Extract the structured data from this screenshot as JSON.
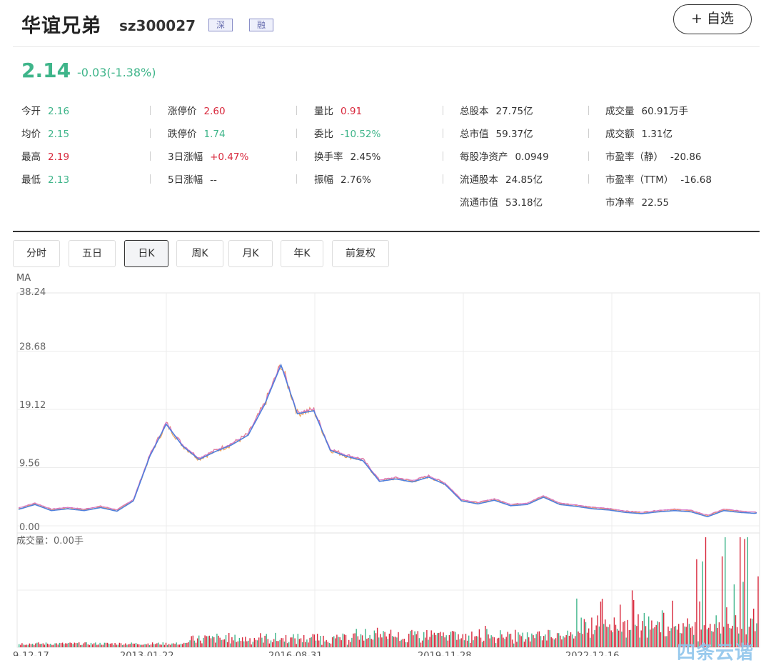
{
  "header": {
    "name": "华谊兄弟",
    "code": "sz300027",
    "tag_market": "深",
    "tag_margin": "融",
    "watch_label": "+ 自选"
  },
  "quote": {
    "price": "2.14",
    "change": "-0.03(-1.38%)"
  },
  "stats": [
    [
      {
        "label": "今开",
        "value": "2.16",
        "color": "green"
      },
      {
        "label": "涨停价",
        "value": "2.60",
        "color": "red"
      },
      {
        "label": "量比",
        "value": "0.91",
        "color": "red"
      },
      {
        "label": "总股本",
        "value": "27.75亿",
        "color": ""
      },
      {
        "label": "成交量",
        "value": "60.91万手",
        "color": ""
      }
    ],
    [
      {
        "label": "均价",
        "value": "2.15",
        "color": "green"
      },
      {
        "label": "跌停价",
        "value": "1.74",
        "color": "green"
      },
      {
        "label": "委比",
        "value": "-10.52%",
        "color": "green"
      },
      {
        "label": "总市值",
        "value": "59.37亿",
        "color": ""
      },
      {
        "label": "成交额",
        "value": "1.31亿",
        "color": ""
      }
    ],
    [
      {
        "label": "最高",
        "value": "2.19",
        "color": "red"
      },
      {
        "label": "3日涨幅",
        "value": "+0.47%",
        "color": "red"
      },
      {
        "label": "换手率",
        "value": "2.45%",
        "color": ""
      },
      {
        "label": "每股净资产",
        "value": "0.0949",
        "color": ""
      },
      {
        "label": "市盈率（静）",
        "value": "-20.86",
        "color": ""
      }
    ],
    [
      {
        "label": "最低",
        "value": "2.13",
        "color": "green"
      },
      {
        "label": "5日涨幅",
        "value": "--",
        "color": ""
      },
      {
        "label": "振幅",
        "value": "2.76%",
        "color": ""
      },
      {
        "label": "流通股本",
        "value": "24.85亿",
        "color": ""
      },
      {
        "label": "市盈率（TTM）",
        "value": "-16.68",
        "color": ""
      }
    ],
    [
      null,
      null,
      null,
      {
        "label": "流通市值",
        "value": "53.18亿",
        "color": ""
      },
      {
        "label": "市净率",
        "value": "22.55",
        "color": ""
      }
    ]
  ],
  "tabs": [
    "分时",
    "五日",
    "日K",
    "周K",
    "月K",
    "年K",
    "前复权"
  ],
  "active_tab": "日K",
  "chart": {
    "ma_label": "MA",
    "volume_label": "成交量：0.00手",
    "watermark": "四条云谐"
  },
  "chart_data": {
    "type": "line",
    "ylim": [
      0,
      38.24
    ],
    "y_ticks": [
      "38.24",
      "28.68",
      "19.12",
      "9.56",
      "0.00"
    ],
    "x_ticks": [
      "9-12-17",
      "2013-01-22",
      "2016-08-31",
      "2019-11-28",
      "2022-12-16"
    ],
    "x": [
      "2009-12",
      "2010-06",
      "2011-01",
      "2011-07",
      "2012-01",
      "2012-07",
      "2013-01",
      "2013-05",
      "2013-08",
      "2013-10",
      "2014-01",
      "2014-04",
      "2014-07",
      "2014-10",
      "2015-01",
      "2015-04",
      "2015-06",
      "2015-08",
      "2015-10",
      "2016-01",
      "2016-04",
      "2016-08",
      "2016-12",
      "2017-04",
      "2017-08",
      "2017-12",
      "2018-04",
      "2018-08",
      "2018-12",
      "2019-04",
      "2019-08",
      "2019-12",
      "2020-04",
      "2020-07",
      "2020-12",
      "2021-06",
      "2021-12",
      "2022-06",
      "2022-12",
      "2023-06",
      "2023-12",
      "2024-04",
      "2024-06",
      "2024-09",
      "2024-12",
      "2025-03"
    ],
    "series": [
      {
        "values": [
          2.8,
          3.6,
          2.6,
          2.9,
          2.6,
          3.1,
          2.5,
          4.2,
          11.5,
          16.8,
          13.2,
          11.0,
          12.3,
          13.4,
          15.0,
          20.0,
          26.5,
          18.5,
          19.0,
          12.5,
          11.5,
          10.8,
          7.4,
          7.8,
          7.3,
          8.1,
          6.9,
          4.2,
          3.7,
          4.3,
          3.4,
          3.6,
          4.8,
          3.6,
          3.3,
          2.9,
          2.7,
          2.3,
          2.1,
          2.4,
          2.6,
          2.4,
          1.6,
          2.6,
          2.3,
          2.14
        ]
      }
    ],
    "volume": {
      "ylim": [
        0,
        100
      ],
      "note": "volume bars grow larger toward recent years"
    }
  }
}
